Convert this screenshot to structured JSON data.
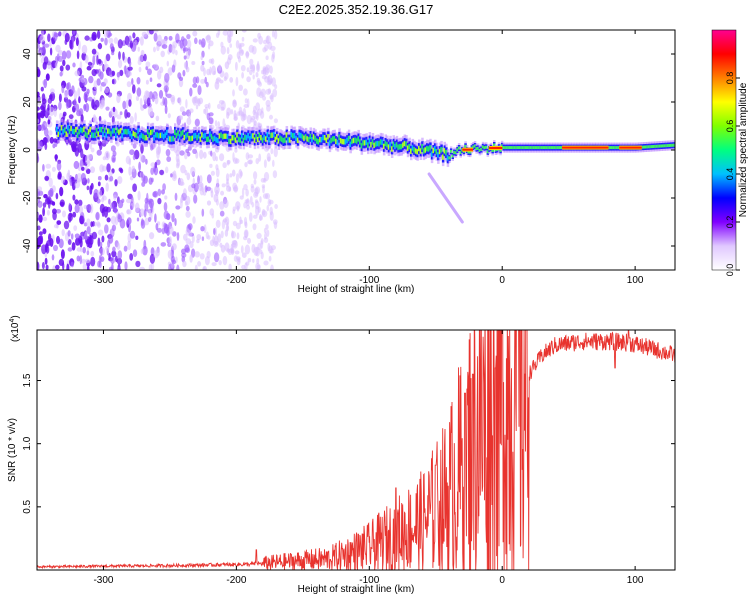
{
  "title": "C2E2.2025.352.19.36.G17",
  "chart_data": [
    {
      "type": "heatmap",
      "name": "spectrogram",
      "xlabel": "Height of straight line (km)",
      "ylabel": "Frequency (Hz)",
      "xlim": [
        -350,
        130
      ],
      "ylim": [
        -50,
        50
      ],
      "x_ticks": [
        -300,
        -200,
        -100,
        0,
        100
      ],
      "y_ticks": [
        -40,
        -20,
        0,
        20,
        40
      ],
      "colorbar": {
        "label": "Normalized spectral amplitude",
        "range": [
          0,
          1
        ],
        "ticks": [
          0.0,
          0.2,
          0.4,
          0.6,
          0.8
        ],
        "tick_labels": [
          "0.0",
          "0.2",
          "0.4",
          "0.6",
          "0.8"
        ],
        "colormap": [
          "#ffffff",
          "#e0c8ff",
          "#8000ff",
          "#0000ff",
          "#00c0ff",
          "#00ff80",
          "#80ff00",
          "#ffff00",
          "#ff8000",
          "#ff0000",
          "#ff0090"
        ]
      },
      "signal_track": [
        {
          "x": -330,
          "freq": 8
        },
        {
          "x": -300,
          "freq": 7
        },
        {
          "x": -250,
          "freq": 6
        },
        {
          "x": -200,
          "freq": 5
        },
        {
          "x": -150,
          "freq": 5
        },
        {
          "x": -100,
          "freq": 3
        },
        {
          "x": -70,
          "freq": 1
        },
        {
          "x": -40,
          "freq": -2
        },
        {
          "x": -30,
          "freq": 0
        },
        {
          "x": 0,
          "freq": 1
        },
        {
          "x": 50,
          "freq": 1
        },
        {
          "x": 100,
          "freq": 1
        },
        {
          "x": 130,
          "freq": 2
        }
      ],
      "noise_region_x": [
        -350,
        -170
      ],
      "branch": [
        {
          "x": -55,
          "freq": -10
        },
        {
          "x": -30,
          "freq": -30
        }
      ]
    },
    {
      "type": "line",
      "name": "snr",
      "xlabel": "Height of straight line (km)",
      "ylabel": "SNR (10 * v/v)",
      "multiplier_label": "(x10",
      "multiplier_exponent": "4",
      "multiplier_suffix": ")",
      "xlim": [
        -350,
        130
      ],
      "ylim": [
        0,
        19000
      ],
      "x_ticks": [
        -300,
        -200,
        -100,
        0,
        100
      ],
      "y_ticks": [
        5000,
        10000,
        15000
      ],
      "y_tick_labels": [
        "0.5",
        "1.0",
        "1.5"
      ],
      "color": "#e8332e",
      "envelope": [
        {
          "x": -350,
          "snr": 250
        },
        {
          "x": -250,
          "snr": 350
        },
        {
          "x": -190,
          "snr": 450
        },
        {
          "x": -170,
          "snr": 600
        },
        {
          "x": -130,
          "snr": 900
        },
        {
          "x": -100,
          "snr": 1800
        },
        {
          "x": -80,
          "snr": 2800
        },
        {
          "x": -60,
          "snr": 3800
        },
        {
          "x": -40,
          "snr": 6000
        },
        {
          "x": -30,
          "snr": 8000
        },
        {
          "x": -20,
          "snr": 11000
        },
        {
          "x": -10,
          "snr": 12000
        },
        {
          "x": 0,
          "snr": 13000
        },
        {
          "x": 10,
          "snr": 14500
        },
        {
          "x": 20,
          "snr": 15500
        },
        {
          "x": 30,
          "snr": 17000
        },
        {
          "x": 40,
          "snr": 17800
        },
        {
          "x": 60,
          "snr": 18100
        },
        {
          "x": 80,
          "snr": 18100
        },
        {
          "x": 95,
          "snr": 18000
        },
        {
          "x": 110,
          "snr": 17600
        },
        {
          "x": 130,
          "snr": 17000
        }
      ],
      "spikes": [
        {
          "x": -185,
          "snr": 1600
        },
        {
          "x": -80,
          "snr": 6500
        },
        {
          "x": -50,
          "snr": 8300
        },
        {
          "x": -28,
          "snr": 14000
        },
        {
          "x": -22,
          "snr": 15500
        },
        {
          "x": -5,
          "snr": 16000
        },
        {
          "x": 95,
          "snr": 19000
        },
        {
          "x": 85,
          "snr": 16000
        }
      ]
    }
  ]
}
